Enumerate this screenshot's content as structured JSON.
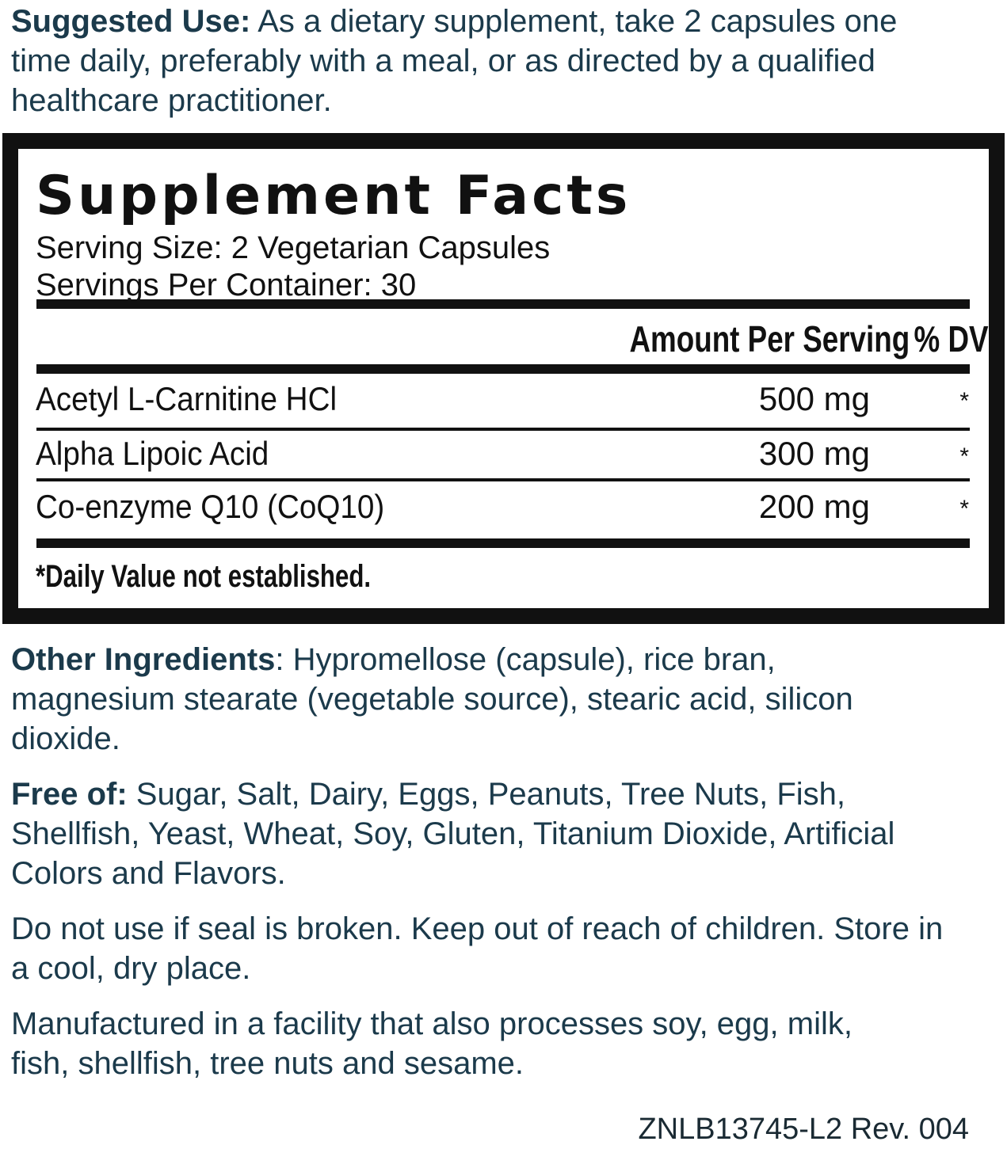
{
  "suggested_use": {
    "label": "Suggested Use:",
    "text": " As a dietary supplement, take 2 capsules one time daily, preferably with a meal, or as directed by a qualified healthcare practitioner."
  },
  "facts": {
    "title": "Supplement Facts",
    "serving_size": "Serving Size: 2 Vegetarian Capsules",
    "servings_per_container": "Servings Per Container: 30",
    "header_amount": "Amount Per Serving",
    "header_dv": "% DV",
    "rows": [
      {
        "name": "Acetyl L-Carnitine HCl",
        "amount": "500 mg",
        "dv": "*"
      },
      {
        "name": "Alpha Lipoic Acid",
        "amount": "300 mg",
        "dv": "*"
      },
      {
        "name": "Co-enzyme Q10 (CoQ10)",
        "amount": "200 mg",
        "dv": "*"
      }
    ],
    "footnote": "*Daily Value not established."
  },
  "other_ingredients": {
    "label": "Other Ingredients",
    "text": ": Hypromellose (capsule), rice bran, magnesium stearate (vegetable source), stearic acid, silicon dioxide."
  },
  "free_of": {
    "label": "Free of:",
    "text": " Sugar, Salt, Dairy, Eggs, Peanuts, Tree Nuts, Fish, Shellfish, Yeast, Wheat, Soy, Gluten, Titanium Dioxide, Artificial Colors and Flavors."
  },
  "warning": "Do not use if seal is broken. Keep out of reach of children. Store in a cool, dry place.",
  "allergen": "Manufactured in a facility that also processes soy, egg, milk, fish, shellfish, tree nuts and sesame.",
  "code": "ZNLB13745-L2 Rev. 004",
  "colors": {
    "text": "#1b3a4b",
    "box": "#111111"
  }
}
